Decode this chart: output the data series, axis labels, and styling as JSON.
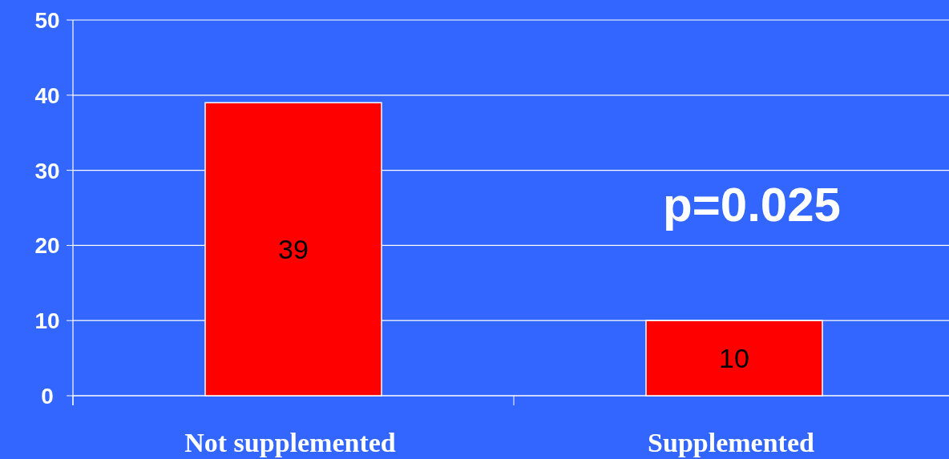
{
  "chart_data": {
    "type": "bar",
    "categories": [
      "Not supplemented",
      "Supplemented"
    ],
    "values": [
      39,
      10
    ],
    "color": "#ff0000",
    "ylim": [
      0,
      50
    ],
    "yticks": [
      0,
      10,
      20,
      30,
      40,
      50
    ],
    "grid": "y",
    "data_labels": true,
    "annotations": [
      "p=0.025"
    ]
  }
}
